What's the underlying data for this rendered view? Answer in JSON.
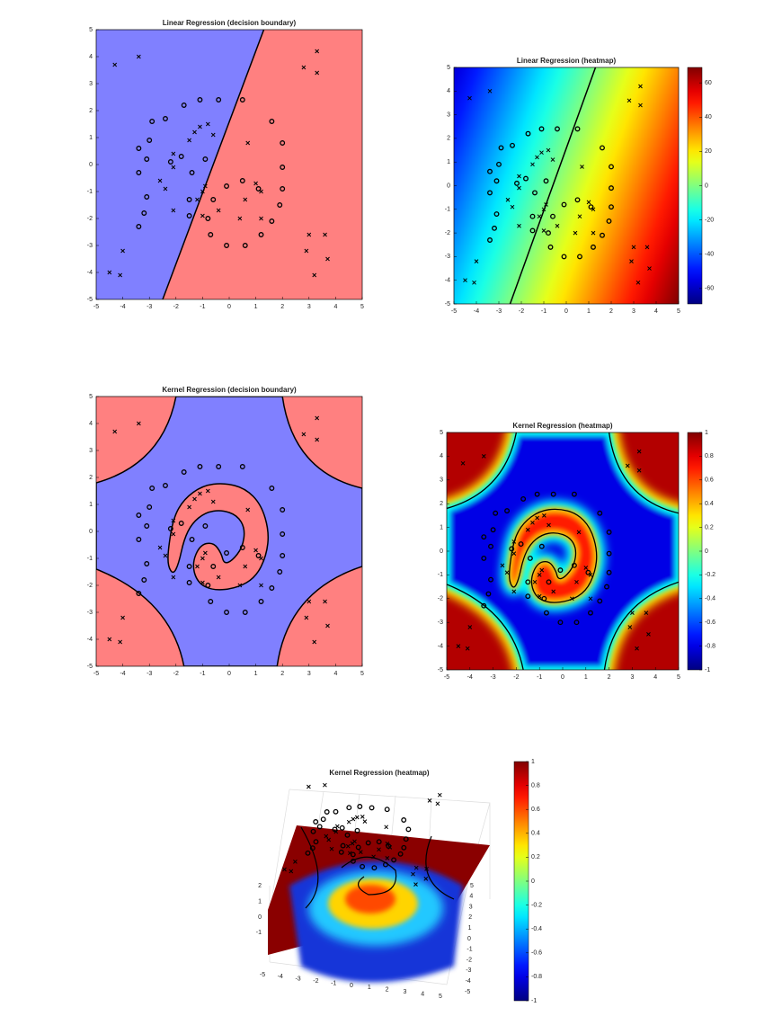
{
  "chart_data": [
    {
      "type": "scatter",
      "title": "Linear Regression (decision boundary)",
      "xlim": [
        -5,
        5
      ],
      "ylim": [
        -5,
        5
      ],
      "xticks": [
        -5,
        -4,
        -3,
        -2,
        -1,
        0,
        1,
        2,
        3,
        4,
        5
      ],
      "yticks": [
        -5,
        -4,
        -3,
        -2,
        -1,
        0,
        1,
        2,
        3,
        4,
        5
      ],
      "colors": [
        "#8080ff",
        "#ff8080"
      ],
      "series": [
        {
          "marker": "o",
          "x": [
            -3.4,
            -3.2,
            -3.1,
            -3.4,
            -3.1,
            -3.4,
            -3.0,
            -2.9,
            -2.4,
            -1.7,
            -1.1,
            -0.4,
            0.5,
            1.6,
            2.0,
            2.0,
            2.0,
            1.9,
            1.6,
            1.2,
            0.6,
            -0.1,
            -0.7,
            -0.8,
            -0.6,
            -0.1,
            0.5,
            1.1,
            -1.5,
            -1.5,
            -1.4,
            -0.9,
            -1.8,
            -2.2
          ],
          "y": [
            -2.3,
            -1.8,
            -1.2,
            -0.3,
            0.2,
            0.6,
            0.9,
            1.6,
            1.7,
            2.2,
            2.4,
            2.4,
            2.4,
            1.6,
            0.8,
            -0.1,
            -0.9,
            -1.5,
            -2.1,
            -2.6,
            -3.0,
            -3.0,
            -2.6,
            -2.0,
            -1.3,
            -0.8,
            -0.6,
            -0.9,
            -1.9,
            -1.3,
            -0.3,
            0.2,
            0.3,
            0.1
          ]
        },
        {
          "marker": "x",
          "x": [
            -4.3,
            -3.4,
            2.8,
            3.3,
            3.3,
            -4.5,
            -4.1,
            -4.0,
            3.0,
            2.9,
            3.6,
            3.7,
            3.2,
            -1.3,
            -1.1,
            -0.8,
            -0.6,
            -1.5,
            -2.1,
            -2.1,
            -2.4,
            -2.6,
            -2.1,
            -1.0,
            -1.0,
            -0.4,
            0.4,
            0.6,
            1.2,
            1.0,
            1.2,
            0.7,
            -0.9,
            -1.2
          ],
          "y": [
            3.7,
            4.0,
            3.6,
            4.2,
            3.4,
            -4.0,
            -4.1,
            -3.2,
            -2.6,
            -3.2,
            -2.6,
            -3.5,
            -4.1,
            1.2,
            1.4,
            1.5,
            1.1,
            0.9,
            0.4,
            -0.1,
            -0.9,
            -0.6,
            -1.7,
            -1.0,
            -1.9,
            -1.7,
            -2.0,
            -1.3,
            -1.0,
            -0.7,
            -2.0,
            0.8,
            -0.8,
            -1.3
          ]
        }
      ]
    },
    {
      "type": "heatmap",
      "title": "Linear Regression (heatmap)",
      "xlim": [
        -5,
        5
      ],
      "ylim": [
        -5,
        5
      ],
      "xticks": [
        -5,
        -4,
        -3,
        -2,
        -1,
        0,
        1,
        2,
        3,
        4,
        5
      ],
      "yticks": [
        -5,
        -4,
        -3,
        -2,
        -1,
        0,
        1,
        2,
        3,
        4,
        5
      ],
      "colormap": "jet",
      "clim": [
        -69,
        69
      ],
      "cticks": [
        -60,
        -40,
        -20,
        0,
        20,
        40,
        60
      ]
    },
    {
      "type": "scatter",
      "title": "Kernel Regression (decision boundary)",
      "xlim": [
        -5,
        5
      ],
      "ylim": [
        -5,
        5
      ],
      "xticks": [
        -5,
        -4,
        -3,
        -2,
        -1,
        0,
        1,
        2,
        3,
        4,
        5
      ],
      "yticks": [
        -5,
        -4,
        -3,
        -2,
        -1,
        0,
        1,
        2,
        3,
        4,
        5
      ],
      "colors": [
        "#8080ff",
        "#ff8080"
      ]
    },
    {
      "type": "heatmap",
      "title": "Kernel Regression (heatmap)",
      "xlim": [
        -5,
        5
      ],
      "ylim": [
        -5,
        5
      ],
      "xticks": [
        -5,
        -4,
        -3,
        -2,
        -1,
        0,
        1,
        2,
        3,
        4,
        5
      ],
      "yticks": [
        -5,
        -4,
        -3,
        -2,
        -1,
        0,
        1,
        2,
        3,
        4,
        5
      ],
      "colormap": "jet",
      "clim": [
        -1,
        1
      ],
      "cticks": [
        -1,
        -0.8,
        -0.6,
        -0.4,
        -0.2,
        0,
        0.2,
        0.4,
        0.6,
        0.8,
        1
      ]
    },
    {
      "type": "surface",
      "title": "Kernel Regression (heatmap)",
      "xticks": [
        -5,
        -4,
        -3,
        -2,
        -1,
        0,
        1,
        2,
        3,
        4,
        5
      ],
      "yticks": [
        -5,
        -4,
        -3,
        -2,
        -1,
        0,
        1,
        2,
        3,
        4,
        5
      ],
      "zticks": [
        -1,
        0,
        1,
        2
      ],
      "colormap": "jet",
      "clim": [
        -1,
        1
      ],
      "cticks": [
        -1,
        -0.8,
        -0.6,
        -0.4,
        -0.2,
        0,
        0.2,
        0.4,
        0.6,
        0.8,
        1
      ]
    }
  ]
}
